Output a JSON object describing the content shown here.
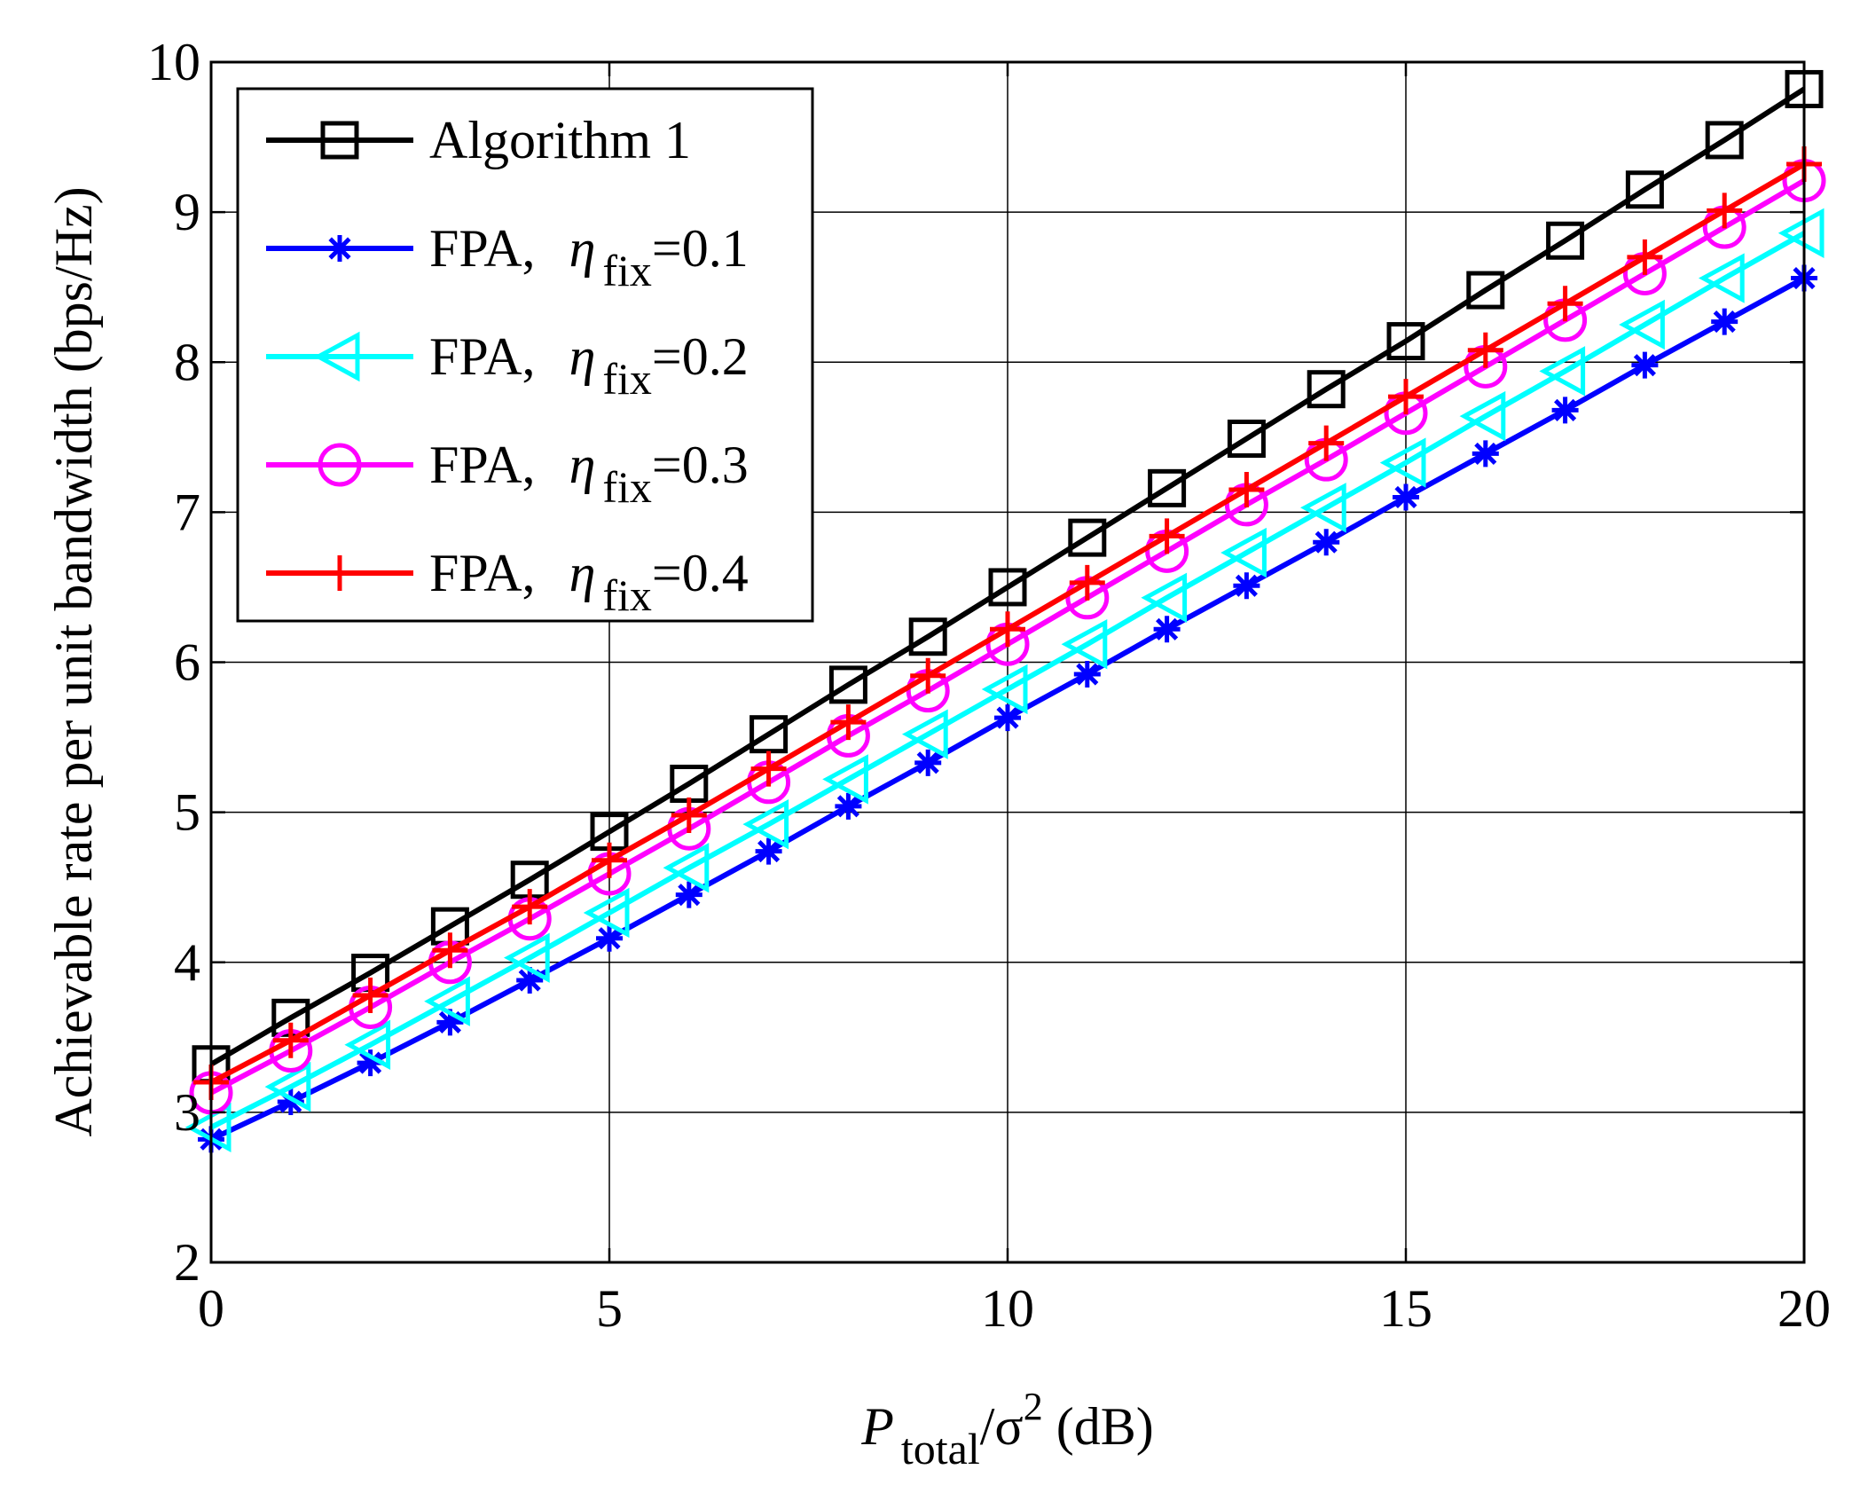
{
  "chart_data": {
    "type": "line",
    "title": "",
    "xlabel": {
      "symbol": "P",
      "subscript": "total",
      "rest": "/σ",
      "superscript": "2",
      "unit": " (dB)"
    },
    "ylabel": "Achievable rate per unit bandwidth (bps/Hz)",
    "xlim": [
      0,
      20
    ],
    "ylim": [
      2,
      10
    ],
    "xticks": [
      "0",
      "5",
      "10",
      "15",
      "20"
    ],
    "yticks": [
      "2",
      "3",
      "4",
      "5",
      "6",
      "7",
      "8",
      "9",
      "10"
    ],
    "grid": true,
    "legend_position": "top-left",
    "x": [
      0,
      1,
      2,
      3,
      4,
      5,
      6,
      7,
      8,
      9,
      10,
      11,
      12,
      13,
      14,
      15,
      16,
      17,
      18,
      19,
      20
    ],
    "series": [
      {
        "name": "Algorithm 1",
        "legend_label": "Algorithm 1",
        "color": "#000000",
        "marker": "square",
        "values": [
          3.32,
          3.63,
          3.93,
          4.24,
          4.55,
          4.87,
          5.19,
          5.52,
          5.85,
          6.17,
          6.5,
          6.83,
          7.16,
          7.49,
          7.82,
          8.14,
          8.48,
          8.81,
          9.15,
          9.48,
          9.82
        ]
      },
      {
        "name": "FPA, η_fix=0.1",
        "legend_prefix": "FPA,",
        "legend_symbol": "η",
        "legend_subscript": "fix",
        "legend_value": "=0.1",
        "color": "#0000ff",
        "marker": "asterisk",
        "values": [
          2.82,
          3.07,
          3.33,
          3.6,
          3.88,
          4.16,
          4.45,
          4.74,
          5.04,
          5.33,
          5.63,
          5.92,
          6.22,
          6.51,
          6.8,
          7.1,
          7.39,
          7.68,
          7.98,
          8.27,
          8.56
        ]
      },
      {
        "name": "FPA, η_fix=0.2",
        "legend_prefix": "FPA,",
        "legend_symbol": "η",
        "legend_subscript": "fix",
        "legend_value": "=0.2",
        "color": "#00ffff",
        "marker": "triangle-left",
        "values": [
          2.9,
          3.17,
          3.45,
          3.74,
          4.03,
          4.33,
          4.63,
          4.92,
          5.22,
          5.52,
          5.82,
          6.12,
          6.43,
          6.73,
          7.03,
          7.33,
          7.64,
          7.94,
          8.25,
          8.56,
          8.86
        ]
      },
      {
        "name": "FPA, η_fix=0.3",
        "legend_prefix": "FPA,",
        "legend_symbol": "η",
        "legend_subscript": "fix",
        "legend_value": "=0.3",
        "color": "#ff00ff",
        "marker": "circle",
        "values": [
          3.13,
          3.41,
          3.7,
          4.0,
          4.29,
          4.59,
          4.89,
          5.2,
          5.51,
          5.81,
          6.12,
          6.43,
          6.74,
          7.05,
          7.35,
          7.66,
          7.97,
          8.28,
          8.59,
          8.9,
          9.21
        ]
      },
      {
        "name": "FPA, η_fix=0.4",
        "legend_prefix": "FPA,",
        "legend_symbol": "η",
        "legend_subscript": "fix",
        "legend_value": "=0.4",
        "color": "#ff0000",
        "marker": "plus",
        "values": [
          3.2,
          3.48,
          3.78,
          4.08,
          4.37,
          4.68,
          4.98,
          5.29,
          5.6,
          5.91,
          6.22,
          6.53,
          6.84,
          7.15,
          7.46,
          7.77,
          8.08,
          8.39,
          8.7,
          9.01,
          9.32
        ]
      }
    ]
  }
}
